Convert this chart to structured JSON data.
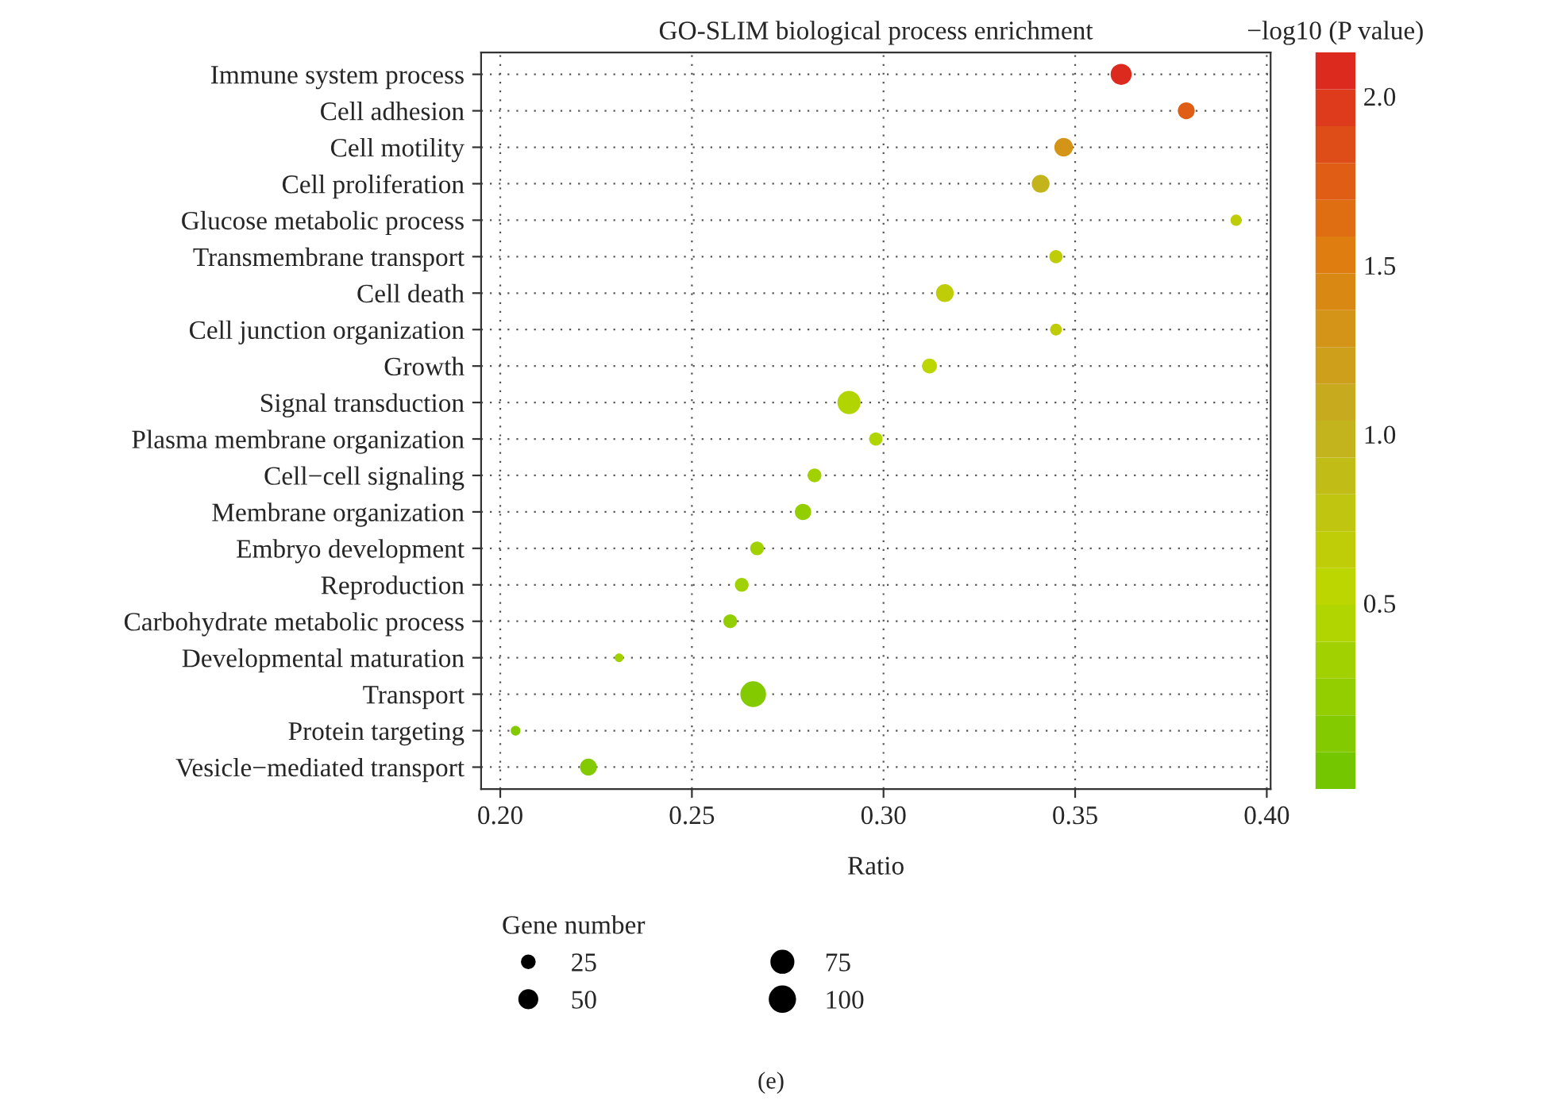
{
  "chart_data": {
    "type": "bubble",
    "orientation": "horizontal",
    "title": "GO-SLIM biological process enrichment",
    "xlabel": "Ratio",
    "clabel": "−log10 (P value)",
    "legend_title": "Gene number",
    "categories": [
      "Immune system process",
      "Cell adhesion",
      "Cell motility",
      "Cell proliferation",
      "Glucose metabolic process",
      "Transmembrane transport",
      "Cell death",
      "Cell junction organization",
      "Growth",
      "Signal transduction",
      "Plasma membrane organization",
      "Cell−cell signaling",
      "Membrane organization",
      "Embryo development",
      "Reproduction",
      "Carbohydrate metabolic process",
      "Developmental maturation",
      "Transport",
      "Protein targeting",
      "Vesicle−mediated transport"
    ],
    "values": [
      0.362,
      0.379,
      0.347,
      0.341,
      0.392,
      0.345,
      0.316,
      0.345,
      0.312,
      0.291,
      0.298,
      0.282,
      0.279,
      0.267,
      0.263,
      0.26,
      0.231,
      0.266,
      0.204,
      0.223
    ],
    "sizes": [
      70,
      45,
      55,
      50,
      20,
      28,
      50,
      22,
      35,
      85,
      28,
      30,
      42,
      30,
      30,
      30,
      12,
      105,
      15,
      45
    ],
    "cvalues": [
      2.1,
      1.7,
      1.3,
      1.0,
      0.7,
      0.7,
      0.65,
      0.65,
      0.5,
      0.45,
      0.45,
      0.3,
      0.25,
      0.3,
      0.3,
      0.2,
      0.3,
      0.15,
      0.1,
      0.1
    ],
    "size_legend": [
      25,
      50,
      75,
      100
    ],
    "clim": [
      -0.05,
      2.13
    ],
    "cticks": [
      {
        "value": 0.5,
        "label": "0.5"
      },
      {
        "value": 1.0,
        "label": "1.0"
      },
      {
        "value": 1.5,
        "label": "1.5"
      },
      {
        "value": 2.0,
        "label": "2.0"
      }
    ],
    "xlim": [
      0.195,
      0.401
    ],
    "xticks": [
      {
        "value": 0.2,
        "label": "0.20"
      },
      {
        "value": 0.25,
        "label": "0.25"
      },
      {
        "value": 0.3,
        "label": "0.30"
      },
      {
        "value": 0.35,
        "label": "0.35"
      },
      {
        "value": 0.4,
        "label": "0.40"
      }
    ],
    "grid": true,
    "annotations": [
      "(e)"
    ]
  }
}
